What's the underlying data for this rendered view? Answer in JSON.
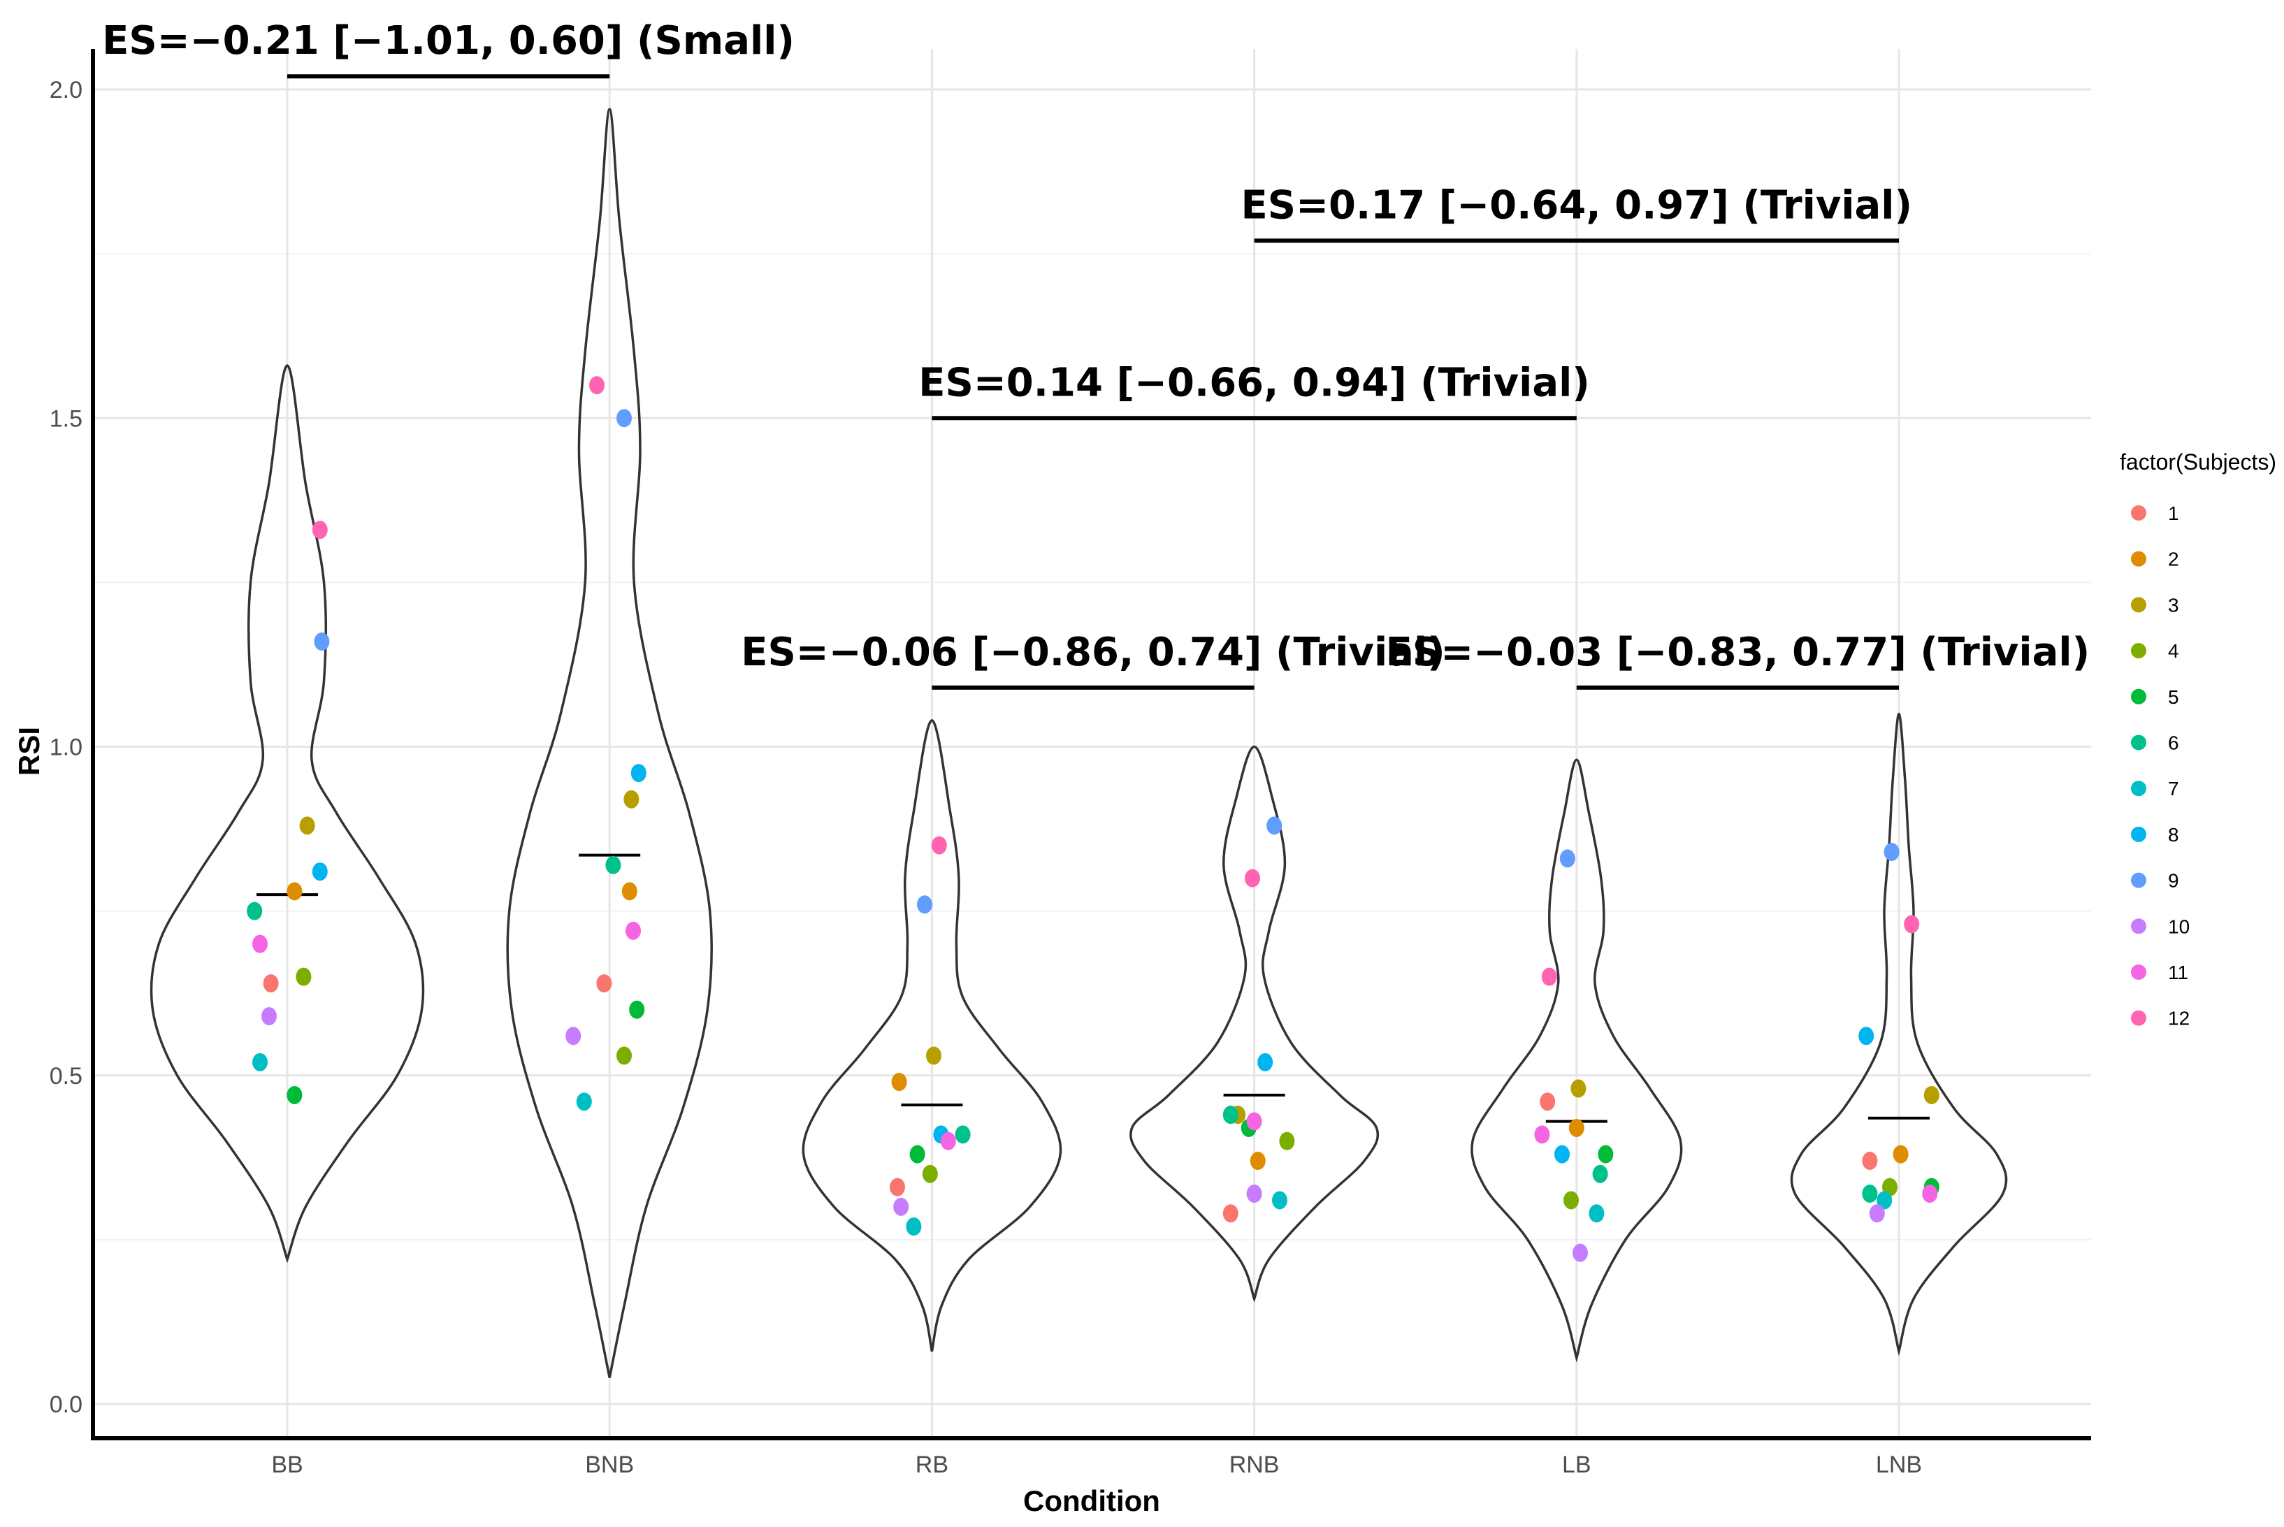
{
  "chart_data": {
    "type": "violin",
    "title": "",
    "xlabel": "Condition",
    "ylabel": "RSI",
    "categories": [
      "BB",
      "BNB",
      "RB",
      "RNB",
      "LB",
      "LNB"
    ],
    "ylim": [
      0,
      2.1
    ],
    "yticks": [
      0.0,
      0.5,
      1.0,
      1.5,
      2.0
    ],
    "ytick_labels": [
      "0.0",
      "0.5",
      "1.0",
      "1.5",
      "2.0"
    ],
    "grid": true,
    "means": [
      0.775,
      0.835,
      0.455,
      0.47,
      0.43,
      0.435
    ],
    "violins": [
      {
        "category": "BB",
        "range": [
          0.22,
          1.58
        ],
        "profile": [
          [
            0.22,
            0.0
          ],
          [
            0.3,
            0.015
          ],
          [
            0.4,
            0.05
          ],
          [
            0.5,
            0.09
          ],
          [
            0.6,
            0.11
          ],
          [
            0.7,
            0.105
          ],
          [
            0.8,
            0.075
          ],
          [
            0.9,
            0.04
          ],
          [
            0.98,
            0.02
          ],
          [
            1.1,
            0.03
          ],
          [
            1.25,
            0.03
          ],
          [
            1.4,
            0.015
          ],
          [
            1.58,
            0.0
          ]
        ]
      },
      {
        "category": "BNB",
        "range": [
          0.04,
          1.97
        ],
        "profile": [
          [
            0.04,
            0.0
          ],
          [
            0.15,
            0.012
          ],
          [
            0.3,
            0.03
          ],
          [
            0.45,
            0.06
          ],
          [
            0.6,
            0.08
          ],
          [
            0.75,
            0.082
          ],
          [
            0.9,
            0.065
          ],
          [
            1.05,
            0.04
          ],
          [
            1.25,
            0.02
          ],
          [
            1.45,
            0.025
          ],
          [
            1.6,
            0.02
          ],
          [
            1.8,
            0.008
          ],
          [
            1.97,
            0.0
          ]
        ]
      },
      {
        "category": "RB",
        "range": [
          0.08,
          1.04
        ],
        "profile": [
          [
            0.08,
            0.0
          ],
          [
            0.15,
            0.008
          ],
          [
            0.22,
            0.03
          ],
          [
            0.3,
            0.08
          ],
          [
            0.38,
            0.105
          ],
          [
            0.46,
            0.09
          ],
          [
            0.54,
            0.055
          ],
          [
            0.62,
            0.025
          ],
          [
            0.7,
            0.02
          ],
          [
            0.8,
            0.022
          ],
          [
            0.9,
            0.015
          ],
          [
            1.04,
            0.0
          ]
        ]
      },
      {
        "category": "RNB",
        "range": [
          0.16,
          1.0
        ],
        "profile": [
          [
            0.16,
            0.0
          ],
          [
            0.22,
            0.012
          ],
          [
            0.3,
            0.05
          ],
          [
            0.37,
            0.09
          ],
          [
            0.42,
            0.1
          ],
          [
            0.47,
            0.07
          ],
          [
            0.55,
            0.03
          ],
          [
            0.65,
            0.008
          ],
          [
            0.72,
            0.012
          ],
          [
            0.82,
            0.025
          ],
          [
            0.92,
            0.015
          ],
          [
            1.0,
            0.0
          ]
        ]
      },
      {
        "category": "LB",
        "range": [
          0.07,
          0.98
        ],
        "profile": [
          [
            0.07,
            0.0
          ],
          [
            0.15,
            0.012
          ],
          [
            0.25,
            0.04
          ],
          [
            0.33,
            0.075
          ],
          [
            0.4,
            0.085
          ],
          [
            0.48,
            0.06
          ],
          [
            0.56,
            0.03
          ],
          [
            0.64,
            0.015
          ],
          [
            0.72,
            0.022
          ],
          [
            0.8,
            0.02
          ],
          [
            0.9,
            0.01
          ],
          [
            0.98,
            0.0
          ]
        ]
      },
      {
        "category": "LNB",
        "range": [
          0.08,
          1.05
        ],
        "profile": [
          [
            0.08,
            0.0
          ],
          [
            0.16,
            0.012
          ],
          [
            0.24,
            0.045
          ],
          [
            0.32,
            0.085
          ],
          [
            0.38,
            0.08
          ],
          [
            0.45,
            0.045
          ],
          [
            0.55,
            0.015
          ],
          [
            0.65,
            0.01
          ],
          [
            0.75,
            0.012
          ],
          [
            0.85,
            0.008
          ],
          [
            0.95,
            0.005
          ],
          [
            1.05,
            0.0
          ]
        ]
      }
    ],
    "points": [
      {
        "category": "BB",
        "subject": 1,
        "value": 0.64,
        "jitter": -0.09
      },
      {
        "category": "BB",
        "subject": 2,
        "value": 0.78,
        "jitter": 0.04
      },
      {
        "category": "BB",
        "subject": 3,
        "value": 0.88,
        "jitter": 0.11
      },
      {
        "category": "BB",
        "subject": 4,
        "value": 0.65,
        "jitter": 0.09
      },
      {
        "category": "BB",
        "subject": 5,
        "value": 0.47,
        "jitter": 0.04
      },
      {
        "category": "BB",
        "subject": 6,
        "value": 0.75,
        "jitter": -0.18
      },
      {
        "category": "BB",
        "subject": 7,
        "value": 0.52,
        "jitter": -0.15
      },
      {
        "category": "BB",
        "subject": 8,
        "value": 0.81,
        "jitter": 0.18
      },
      {
        "category": "BB",
        "subject": 9,
        "value": 1.16,
        "jitter": 0.19
      },
      {
        "category": "BB",
        "subject": 10,
        "value": 0.59,
        "jitter": -0.1
      },
      {
        "category": "BB",
        "subject": 11,
        "value": 0.7,
        "jitter": -0.15
      },
      {
        "category": "BB",
        "subject": 12,
        "value": 1.33,
        "jitter": 0.18
      },
      {
        "category": "BNB",
        "subject": 1,
        "value": 0.64,
        "jitter": -0.03
      },
      {
        "category": "BNB",
        "subject": 2,
        "value": 0.78,
        "jitter": 0.11
      },
      {
        "category": "BNB",
        "subject": 3,
        "value": 0.92,
        "jitter": 0.12
      },
      {
        "category": "BNB",
        "subject": 4,
        "value": 0.53,
        "jitter": 0.08
      },
      {
        "category": "BNB",
        "subject": 5,
        "value": 0.6,
        "jitter": 0.15
      },
      {
        "category": "BNB",
        "subject": 6,
        "value": 0.82,
        "jitter": 0.02
      },
      {
        "category": "BNB",
        "subject": 7,
        "value": 0.46,
        "jitter": -0.14
      },
      {
        "category": "BNB",
        "subject": 8,
        "value": 0.96,
        "jitter": 0.16
      },
      {
        "category": "BNB",
        "subject": 9,
        "value": 1.5,
        "jitter": 0.08
      },
      {
        "category": "BNB",
        "subject": 10,
        "value": 0.56,
        "jitter": -0.2
      },
      {
        "category": "BNB",
        "subject": 11,
        "value": 0.72,
        "jitter": 0.13
      },
      {
        "category": "BNB",
        "subject": 12,
        "value": 1.55,
        "jitter": -0.07
      },
      {
        "category": "RB",
        "subject": 1,
        "value": 0.33,
        "jitter": -0.19
      },
      {
        "category": "RB",
        "subject": 2,
        "value": 0.49,
        "jitter": -0.18
      },
      {
        "category": "RB",
        "subject": 3,
        "value": 0.53,
        "jitter": 0.01
      },
      {
        "category": "RB",
        "subject": 4,
        "value": 0.35,
        "jitter": -0.01
      },
      {
        "category": "RB",
        "subject": 5,
        "value": 0.38,
        "jitter": -0.08
      },
      {
        "category": "RB",
        "subject": 6,
        "value": 0.41,
        "jitter": 0.17
      },
      {
        "category": "RB",
        "subject": 7,
        "value": 0.27,
        "jitter": -0.1
      },
      {
        "category": "RB",
        "subject": 8,
        "value": 0.41,
        "jitter": 0.05
      },
      {
        "category": "RB",
        "subject": 9,
        "value": 0.76,
        "jitter": -0.04
      },
      {
        "category": "RB",
        "subject": 10,
        "value": 0.3,
        "jitter": -0.17
      },
      {
        "category": "RB",
        "subject": 11,
        "value": 0.4,
        "jitter": 0.09
      },
      {
        "category": "RB",
        "subject": 12,
        "value": 0.85,
        "jitter": 0.04
      },
      {
        "category": "RNB",
        "subject": 1,
        "value": 0.29,
        "jitter": -0.13
      },
      {
        "category": "RNB",
        "subject": 2,
        "value": 0.37,
        "jitter": 0.02
      },
      {
        "category": "RNB",
        "subject": 3,
        "value": 0.44,
        "jitter": -0.09
      },
      {
        "category": "RNB",
        "subject": 4,
        "value": 0.4,
        "jitter": 0.18
      },
      {
        "category": "RNB",
        "subject": 5,
        "value": 0.42,
        "jitter": -0.03
      },
      {
        "category": "RNB",
        "subject": 6,
        "value": 0.44,
        "jitter": -0.13
      },
      {
        "category": "RNB",
        "subject": 7,
        "value": 0.31,
        "jitter": 0.14
      },
      {
        "category": "RNB",
        "subject": 8,
        "value": 0.52,
        "jitter": 0.06
      },
      {
        "category": "RNB",
        "subject": 9,
        "value": 0.88,
        "jitter": 0.11
      },
      {
        "category": "RNB",
        "subject": 10,
        "value": 0.32,
        "jitter": 0.0
      },
      {
        "category": "RNB",
        "subject": 11,
        "value": 0.43,
        "jitter": 0.0
      },
      {
        "category": "RNB",
        "subject": 12,
        "value": 0.8,
        "jitter": -0.01
      },
      {
        "category": "LB",
        "subject": 1,
        "value": 0.46,
        "jitter": -0.16
      },
      {
        "category": "LB",
        "subject": 2,
        "value": 0.42,
        "jitter": 0.0
      },
      {
        "category": "LB",
        "subject": 3,
        "value": 0.48,
        "jitter": 0.01
      },
      {
        "category": "LB",
        "subject": 4,
        "value": 0.31,
        "jitter": -0.03
      },
      {
        "category": "LB",
        "subject": 5,
        "value": 0.38,
        "jitter": 0.16
      },
      {
        "category": "LB",
        "subject": 6,
        "value": 0.35,
        "jitter": 0.13
      },
      {
        "category": "LB",
        "subject": 7,
        "value": 0.29,
        "jitter": 0.11
      },
      {
        "category": "LB",
        "subject": 8,
        "value": 0.38,
        "jitter": -0.08
      },
      {
        "category": "LB",
        "subject": 9,
        "value": 0.83,
        "jitter": -0.05
      },
      {
        "category": "LB",
        "subject": 10,
        "value": 0.23,
        "jitter": 0.02
      },
      {
        "category": "LB",
        "subject": 11,
        "value": 0.41,
        "jitter": -0.19
      },
      {
        "category": "LB",
        "subject": 12,
        "value": 0.65,
        "jitter": -0.15
      },
      {
        "category": "LNB",
        "subject": 1,
        "value": 0.37,
        "jitter": -0.16
      },
      {
        "category": "LNB",
        "subject": 2,
        "value": 0.38,
        "jitter": 0.01
      },
      {
        "category": "LNB",
        "subject": 3,
        "value": 0.47,
        "jitter": 0.18
      },
      {
        "category": "LNB",
        "subject": 4,
        "value": 0.33,
        "jitter": -0.05
      },
      {
        "category": "LNB",
        "subject": 5,
        "value": 0.33,
        "jitter": 0.18
      },
      {
        "category": "LNB",
        "subject": 6,
        "value": 0.32,
        "jitter": -0.16
      },
      {
        "category": "LNB",
        "subject": 7,
        "value": 0.31,
        "jitter": -0.08
      },
      {
        "category": "LNB",
        "subject": 8,
        "value": 0.56,
        "jitter": -0.18
      },
      {
        "category": "LNB",
        "subject": 9,
        "value": 0.84,
        "jitter": -0.04
      },
      {
        "category": "LNB",
        "subject": 10,
        "value": 0.29,
        "jitter": -0.12
      },
      {
        "category": "LNB",
        "subject": 11,
        "value": 0.32,
        "jitter": 0.17
      },
      {
        "category": "LNB",
        "subject": 12,
        "value": 0.73,
        "jitter": 0.07
      }
    ],
    "brackets": [
      {
        "from": "BB",
        "to": "BNB",
        "y": 2.02,
        "label": "ES=−0.21 [−1.01, 0.60] (Small)"
      },
      {
        "from": "RNB",
        "to": "LNB",
        "y": 1.77,
        "label": "ES=0.17 [−0.64, 0.97] (Trivial)"
      },
      {
        "from": "RB",
        "to": "LB",
        "y": 1.5,
        "label": "ES=0.14 [−0.66, 0.94] (Trivial)"
      },
      {
        "from": "RB",
        "to": "RNB",
        "y": 1.09,
        "label": "ES=−0.06 [−0.86, 0.74] (Trivial)"
      },
      {
        "from": "LB",
        "to": "LNB",
        "y": 1.09,
        "label": "ES=−0.03 [−0.83, 0.77] (Trivial)"
      }
    ],
    "legend": {
      "title": "factor(Subjects)",
      "position": "right",
      "entries": [
        {
          "label": "1",
          "color": "#F8766D"
        },
        {
          "label": "2",
          "color": "#DE8C00"
        },
        {
          "label": "3",
          "color": "#B79F00"
        },
        {
          "label": "4",
          "color": "#7CAE00"
        },
        {
          "label": "5",
          "color": "#00BA38"
        },
        {
          "label": "6",
          "color": "#00C08B"
        },
        {
          "label": "7",
          "color": "#00BFC4"
        },
        {
          "label": "8",
          "color": "#00B4F0"
        },
        {
          "label": "9",
          "color": "#619CFF"
        },
        {
          "label": "10",
          "color": "#C77CFF"
        },
        {
          "label": "11",
          "color": "#F564E3"
        },
        {
          "label": "12",
          "color": "#FF64B0"
        }
      ]
    }
  }
}
